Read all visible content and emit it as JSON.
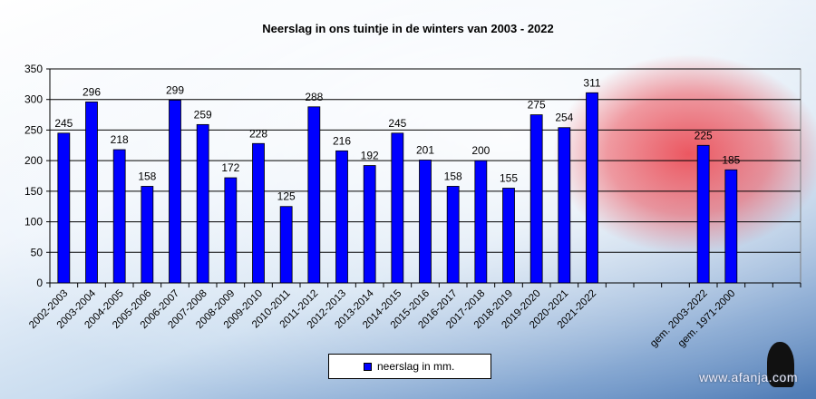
{
  "chart_data": {
    "type": "bar",
    "title": "Neerslag  in  ons  tuintje  in  de  winters   van 2003  -  2022",
    "categories": [
      "2002-2003",
      "2003-2004",
      "2004-2005",
      "2005-2006",
      "2006-2007",
      "2007-2008",
      "2008-2009",
      "2009-2010",
      "2010-2011",
      "2011-2012",
      "2012-2013",
      "2013-2014",
      "2014-2015",
      "2015-2016",
      "2016-2017",
      "2017-2018",
      "2018-2019",
      "2019-2020",
      "2020-2021",
      "2021-2022",
      "",
      "",
      "",
      "gem. 2003-2022",
      "gem. 1971-2000",
      "",
      ""
    ],
    "series": [
      {
        "name": "neerslag in mm.",
        "color": "#0000ff",
        "values": [
          245,
          296,
          218,
          158,
          299,
          259,
          172,
          228,
          125,
          288,
          216,
          192,
          245,
          201,
          158,
          200,
          155,
          275,
          254,
          311,
          null,
          null,
          null,
          225,
          185,
          null,
          null
        ]
      }
    ],
    "ylim": [
      0,
      350
    ],
    "yticks": [
      0,
      50,
      100,
      150,
      200,
      250,
      300,
      350
    ],
    "grid": true,
    "legend": "bottom-center",
    "xlabel": "",
    "ylabel": ""
  },
  "watermark": "www.afanja.com"
}
